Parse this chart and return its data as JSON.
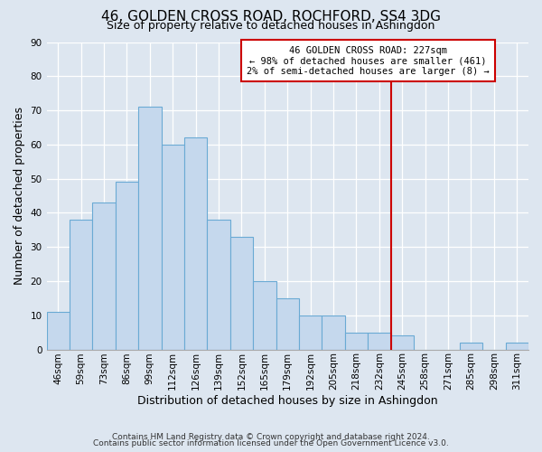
{
  "title": "46, GOLDEN CROSS ROAD, ROCHFORD, SS4 3DG",
  "subtitle": "Size of property relative to detached houses in Ashingdon",
  "xlabel": "Distribution of detached houses by size in Ashingdon",
  "ylabel": "Number of detached properties",
  "footer_line1": "Contains HM Land Registry data © Crown copyright and database right 2024.",
  "footer_line2": "Contains public sector information licensed under the Open Government Licence v3.0.",
  "bin_labels": [
    "46sqm",
    "59sqm",
    "73sqm",
    "86sqm",
    "99sqm",
    "112sqm",
    "126sqm",
    "139sqm",
    "152sqm",
    "165sqm",
    "179sqm",
    "192sqm",
    "205sqm",
    "218sqm",
    "232sqm",
    "245sqm",
    "258sqm",
    "271sqm",
    "285sqm",
    "298sqm",
    "311sqm"
  ],
  "bar_values": [
    11,
    38,
    43,
    49,
    71,
    60,
    62,
    38,
    33,
    20,
    15,
    10,
    10,
    5,
    5,
    4,
    0,
    0,
    2,
    0,
    2
  ],
  "bar_color": "#c5d8ed",
  "bar_edge_color": "#6aaad4",
  "vline_x_bar_index": 14,
  "vline_color": "#cc0000",
  "ylim": [
    0,
    90
  ],
  "yticks": [
    0,
    10,
    20,
    30,
    40,
    50,
    60,
    70,
    80,
    90
  ],
  "annotation_title": "46 GOLDEN CROSS ROAD: 227sqm",
  "annotation_line1": "← 98% of detached houses are smaller (461)",
  "annotation_line2": "2% of semi-detached houses are larger (8) →",
  "annotation_box_color": "#ffffff",
  "annotation_border_color": "#cc0000",
  "bg_color": "#dde6f0",
  "grid_color": "#ffffff",
  "title_fontsize": 11,
  "subtitle_fontsize": 9,
  "axis_label_fontsize": 9,
  "tick_fontsize": 7.5,
  "footer_fontsize": 6.5
}
